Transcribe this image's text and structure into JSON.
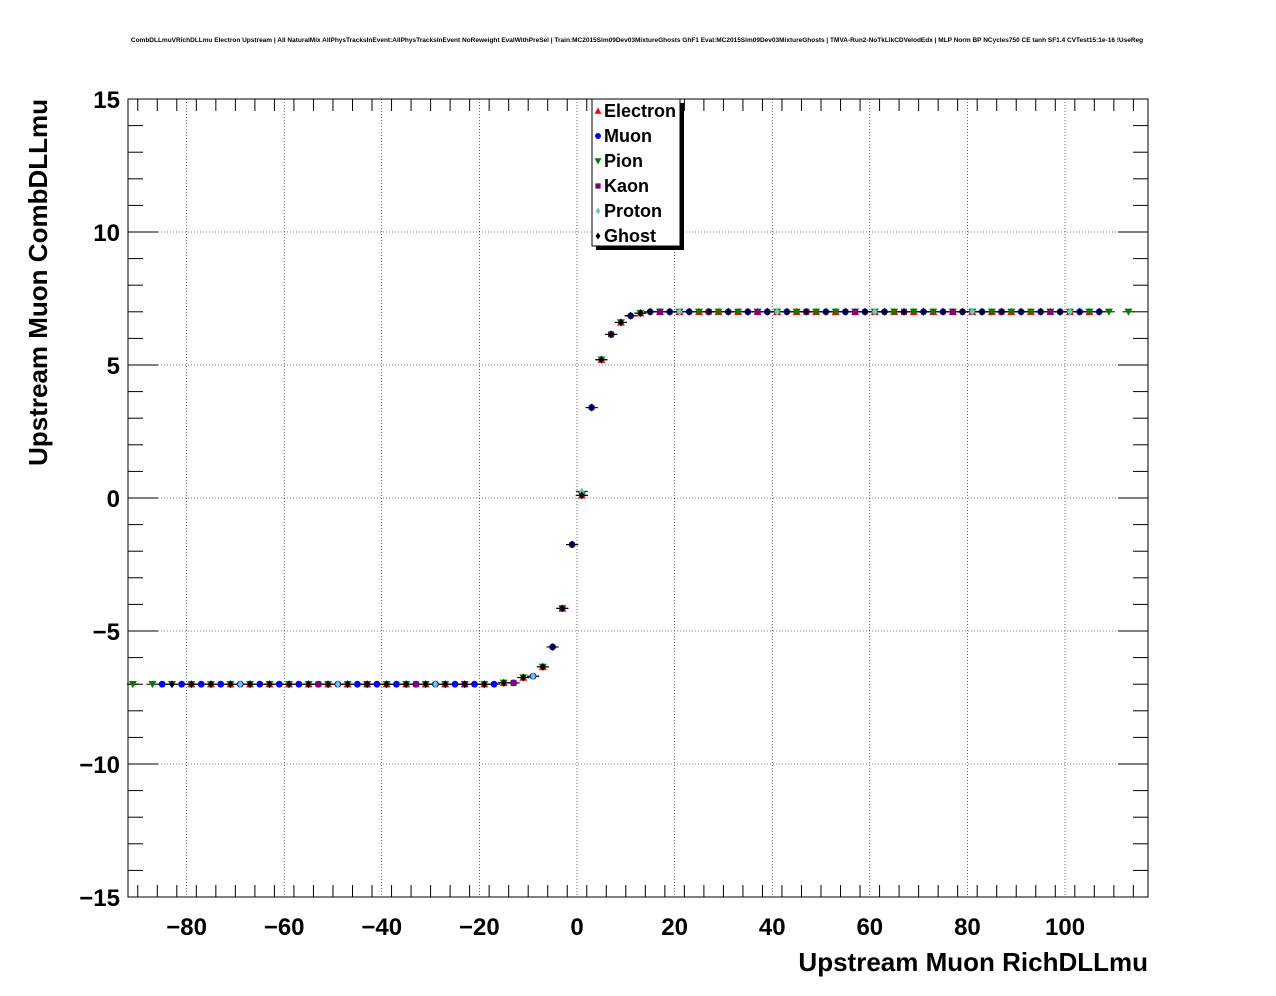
{
  "title": "CombDLLmuVRichDLLmu Electron Upstream | All NaturalMix AllPhysTracksInEvent:AllPhysTracksInEvent NoReweight EvalWithPreSel | Train:MC2015Sim09Dev03MixtureGhosts GhF1 Eval:MC2015Sim09Dev03MixtureGhosts | TMVA-Run2-NoTkLikCDVelodEdx | MLP Norm BP NCycles750 CE tanh SF1.4 CVTest15:1e-16 !UseReg",
  "chart_data": {
    "type": "scatter",
    "title": "CombDLLmuVRichDLLmu Electron Upstream | All NaturalMix AllPhysTracksInEvent:AllPhysTracksInEvent NoReweight EvalWithPreSel | Train:MC2015Sim09Dev03MixtureGhosts GhF1 Eval:MC2015Sim09Dev03MixtureGhosts | TMVA-Run2-NoTkLikCDVelodEdx | MLP Norm BP NCycles750 CE tanh SF1.4 CVTest15:1e-16 !UseReg",
    "xlabel": "Upstream Muon RichDLLmu",
    "ylabel": "Upstream Muon CombDLLmu",
    "xlim": [
      -92,
      117
    ],
    "ylim": [
      -15,
      15
    ],
    "xticks": [
      -80,
      -60,
      -40,
      -20,
      0,
      20,
      40,
      60,
      80,
      100
    ],
    "xtick_labels": [
      "−80",
      "−60",
      "−40",
      "−20",
      "0",
      "20",
      "40",
      "60",
      "80",
      "100"
    ],
    "yticks": [
      -15,
      -10,
      -5,
      0,
      5,
      10,
      15
    ],
    "ytick_labels": [
      "−15",
      "−10",
      "−5",
      "0",
      "5",
      "10",
      "15"
    ],
    "grid": true,
    "legend_position": "top-center",
    "series": [
      {
        "name": "Electron",
        "marker": "triangle-up",
        "color": "#ff0000",
        "x": [
          -79,
          -75,
          -71,
          -67,
          -63,
          -59,
          -55,
          -51,
          -47,
          -43,
          -39,
          -35,
          -31,
          -27,
          -23,
          -19,
          -15,
          -11,
          -7,
          -3,
          1,
          5,
          9,
          13,
          17,
          21,
          25,
          29,
          33,
          37,
          41,
          45,
          49,
          53,
          57,
          61,
          65,
          69,
          73,
          77,
          81,
          85,
          89,
          93,
          97,
          101,
          105
        ],
        "y": [
          -7.0,
          -7.0,
          -7.0,
          -7.0,
          -7.0,
          -7.0,
          -7.0,
          -7.0,
          -7.0,
          -7.0,
          -7.0,
          -7.0,
          -7.0,
          -7.0,
          -7.0,
          -7.0,
          -6.95,
          -6.75,
          -6.35,
          -4.15,
          0.1,
          5.2,
          6.6,
          6.95,
          7.0,
          7.0,
          7.0,
          7.0,
          7.0,
          7.0,
          7.0,
          7.0,
          7.0,
          7.0,
          7.0,
          7.0,
          7.0,
          7.0,
          7.0,
          7.0,
          7.0,
          7.0,
          7.0,
          7.0,
          7.0,
          7.0,
          7.0
        ]
      },
      {
        "name": "Muon",
        "marker": "circle",
        "color": "#0000ff",
        "x": [
          -85,
          -81,
          -77,
          -73,
          -69,
          -65,
          -61,
          -57,
          -53,
          -49,
          -45,
          -41,
          -37,
          -33,
          -29,
          -25,
          -21,
          -17,
          -13,
          -9,
          -5,
          -1,
          3,
          7,
          11,
          15,
          19,
          23,
          27,
          31,
          35,
          39,
          43,
          47,
          51,
          55,
          59,
          63,
          67,
          71,
          75,
          79,
          83,
          87,
          91,
          95,
          99,
          103,
          107
        ],
        "y": [
          -7.0,
          -7.0,
          -7.0,
          -7.0,
          -7.0,
          -7.0,
          -7.0,
          -7.0,
          -7.0,
          -7.0,
          -7.0,
          -7.0,
          -7.0,
          -7.0,
          -7.0,
          -7.0,
          -7.0,
          -7.0,
          -6.95,
          -6.7,
          -5.6,
          -1.75,
          3.4,
          6.15,
          6.85,
          7.0,
          7.0,
          7.0,
          7.0,
          7.0,
          7.0,
          7.0,
          7.0,
          7.0,
          7.0,
          7.0,
          7.0,
          7.0,
          7.0,
          7.0,
          7.0,
          7.0,
          7.0,
          7.0,
          7.0,
          7.0,
          7.0,
          7.0,
          7.0
        ]
      },
      {
        "name": "Pion",
        "marker": "triangle-down",
        "color": "#008000",
        "x": [
          -91,
          -87,
          -83,
          -79,
          -75,
          -71,
          -67,
          -63,
          -59,
          -55,
          -51,
          -47,
          -43,
          -39,
          -35,
          -31,
          -27,
          -23,
          -19,
          -15,
          -11,
          -7,
          -3,
          1,
          5,
          9,
          13,
          17,
          21,
          25,
          29,
          33,
          37,
          41,
          45,
          49,
          53,
          57,
          61,
          65,
          69,
          73,
          77,
          81,
          85,
          89,
          93,
          97,
          101,
          105,
          109,
          113
        ],
        "y": [
          -7.0,
          -7.0,
          -7.0,
          -7.0,
          -7.0,
          -7.0,
          -7.0,
          -7.0,
          -7.0,
          -7.0,
          -7.0,
          -7.0,
          -7.0,
          -7.0,
          -7.0,
          -7.0,
          -7.0,
          -7.0,
          -7.0,
          -6.95,
          -6.75,
          -6.35,
          -4.15,
          0.1,
          5.2,
          6.6,
          6.95,
          7.0,
          7.0,
          7.0,
          7.0,
          7.0,
          7.0,
          7.0,
          7.0,
          7.0,
          7.0,
          7.0,
          7.0,
          7.0,
          7.0,
          7.0,
          7.0,
          7.0,
          7.0,
          7.0,
          7.0,
          7.0,
          7.0,
          7.0,
          7.0,
          7.0
        ]
      },
      {
        "name": "Kaon",
        "marker": "square",
        "color": "#800080",
        "x": [
          -53,
          -43,
          -33,
          -23,
          -13,
          -3,
          7,
          17,
          27,
          37,
          47,
          57,
          67,
          77,
          87,
          97
        ],
        "y": [
          -7.0,
          -7.0,
          -7.0,
          -7.0,
          -6.95,
          -4.15,
          6.15,
          7.0,
          7.0,
          7.0,
          7.0,
          7.0,
          7.0,
          7.0,
          7.0,
          7.0
        ],
        "_": "sparse"
      },
      {
        "name": "Proton",
        "marker": "diamond",
        "color": "#66cccc",
        "x": [
          -79,
          -69,
          -59,
          -49,
          -39,
          -29,
          -19,
          -9,
          -1,
          1,
          3,
          5,
          11,
          21,
          31,
          41,
          51,
          61,
          71,
          81,
          91,
          101
        ],
        "y": [
          -7.0,
          -7.0,
          -7.0,
          -7.0,
          -7.0,
          -7.0,
          -7.0,
          -6.7,
          -1.75,
          0.25,
          3.4,
          5.2,
          6.85,
          7.0,
          7.0,
          7.0,
          7.0,
          7.0,
          7.0,
          7.0,
          7.0,
          7.0
        ]
      },
      {
        "name": "Ghost",
        "marker": "diamond",
        "color": "#000000",
        "x": [
          -83,
          -79,
          -75,
          -71,
          -67,
          -63,
          -59,
          -55,
          -51,
          -47,
          -43,
          -39,
          -35,
          -31,
          -27,
          -23,
          -19,
          -15,
          -11,
          -7,
          -5,
          -3,
          -1,
          1,
          3,
          5,
          7,
          9,
          11,
          13,
          15,
          19,
          23,
          27,
          31,
          35,
          39,
          43,
          47,
          51,
          55,
          59,
          63,
          67,
          71,
          75,
          79,
          83,
          87,
          91,
          95,
          99,
          103,
          107
        ],
        "y": [
          -7.0,
          -7.0,
          -7.0,
          -7.0,
          -7.0,
          -7.0,
          -7.0,
          -7.0,
          -7.0,
          -7.0,
          -7.0,
          -7.0,
          -7.0,
          -7.0,
          -7.0,
          -7.0,
          -7.0,
          -6.95,
          -6.75,
          -6.35,
          -5.6,
          -4.15,
          -1.75,
          0.1,
          3.4,
          5.2,
          6.15,
          6.6,
          6.85,
          6.95,
          7.0,
          7.0,
          7.0,
          7.0,
          7.0,
          7.0,
          7.0,
          7.0,
          7.0,
          7.0,
          7.0,
          7.0,
          7.0,
          7.0,
          7.0,
          7.0,
          7.0,
          7.0,
          7.0,
          7.0,
          7.0,
          7.0,
          7.0,
          7.0
        ]
      }
    ]
  }
}
